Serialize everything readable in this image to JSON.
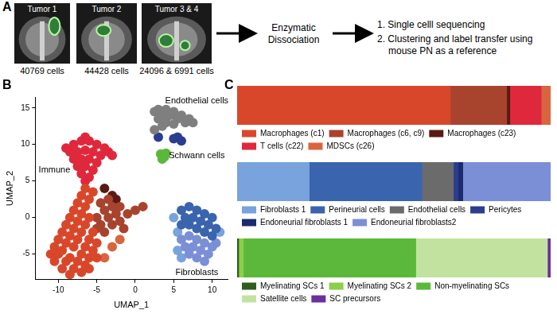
{
  "panel_labels": [
    "A",
    "B",
    "C"
  ],
  "workflow": {
    "samples": [
      {
        "title": "Tumor 1",
        "cells": "40769 cells"
      },
      {
        "title": "Tumor 2",
        "cells": "44428 cells"
      },
      {
        "title": "Tumor 3 & 4",
        "cells": "24096 & 6991 cells"
      }
    ],
    "step": "Enzymatic Dissociation",
    "outputs": [
      "1. Single celll sequencing",
      "2. Clustering and label transfer using mouse PN as a reference"
    ]
  },
  "chart_data": [
    {
      "type": "scatter",
      "x_label": "UMAP_1",
      "y_label": "UMAP_2",
      "xlim": [
        -13,
        12
      ],
      "xticks": [
        -10,
        -5,
        0,
        5,
        10
      ],
      "ylim": [
        -8.5,
        16.5
      ],
      "yticks": [
        -5,
        0,
        5,
        10,
        15
      ],
      "grid": false,
      "series": [
        {
          "color": "#d9472b",
          "points": [
            [
              -10,
              -5
            ],
            [
              -9,
              -6
            ],
            [
              -8,
              -7
            ],
            [
              -7,
              -7.5
            ],
            [
              -10.5,
              -4
            ],
            [
              -9.5,
              -4.5
            ],
            [
              -8.5,
              -5.5
            ],
            [
              -7.5,
              -6
            ],
            [
              -6.5,
              -6.5
            ],
            [
              -10,
              -3
            ],
            [
              -9,
              -3.5
            ],
            [
              -8,
              -4
            ],
            [
              -7,
              -5
            ],
            [
              -6,
              -5.5
            ],
            [
              -9.5,
              -2
            ],
            [
              -8.5,
              -2.5
            ],
            [
              -7.5,
              -3
            ],
            [
              -6.5,
              -4
            ],
            [
              -5.5,
              -4.5
            ],
            [
              -9,
              -1
            ],
            [
              -8,
              -1.5
            ],
            [
              -7,
              -2
            ],
            [
              -6,
              -3
            ],
            [
              -5,
              -3.5
            ],
            [
              -8.5,
              0
            ],
            [
              -7.5,
              -0.5
            ],
            [
              -6.5,
              -1
            ],
            [
              -5.5,
              -2
            ],
            [
              -8,
              1
            ],
            [
              -7,
              0.5
            ],
            [
              -6,
              0
            ],
            [
              -7.5,
              2
            ],
            [
              -6.5,
              1.5
            ],
            [
              -7,
              3
            ],
            [
              -6,
              2.5
            ],
            [
              -6.5,
              4
            ],
            [
              -5.5,
              3.5
            ],
            [
              -11,
              -5
            ],
            [
              -10.5,
              -6
            ],
            [
              -9.5,
              -7
            ],
            [
              -8.5,
              -7.8
            ],
            [
              -6,
              -7
            ],
            [
              -5,
              -5.5
            ]
          ]
        },
        {
          "color": "#a8432e",
          "points": [
            [
              -4.5,
              2
            ],
            [
              -3.5,
              2.5
            ],
            [
              -3,
              1.5
            ],
            [
              -4,
              1
            ],
            [
              -2.5,
              0.5
            ],
            [
              -3.5,
              0
            ],
            [
              -4.5,
              -1
            ],
            [
              -3,
              -1
            ],
            [
              -2,
              -0.5
            ],
            [
              -1,
              0.5
            ],
            [
              0,
              1
            ],
            [
              1,
              1.5
            ],
            [
              -2,
              1.5
            ],
            [
              -4,
              -2
            ],
            [
              -5,
              0
            ],
            [
              -5,
              -1.5
            ],
            [
              -1.5,
              -1.5
            ]
          ]
        },
        {
          "color": "#5a1a14",
          "points": [
            [
              -3,
              3
            ],
            [
              -4,
              4
            ],
            [
              -2.5,
              2.5
            ]
          ]
        },
        {
          "color": "#d9653f",
          "points": [
            [
              -2,
              -3
            ],
            [
              -3,
              -4
            ],
            [
              -4,
              -5.5
            ]
          ]
        },
        {
          "color": "#e0283c",
          "points": [
            [
              -8,
              10
            ],
            [
              -7,
              10.5
            ],
            [
              -6,
              10.5
            ],
            [
              -5,
              10
            ],
            [
              -4,
              9.5
            ],
            [
              -8.5,
              9
            ],
            [
              -7.5,
              9
            ],
            [
              -6.5,
              9.2
            ],
            [
              -5.5,
              9
            ],
            [
              -4.5,
              8.5
            ],
            [
              -8,
              8
            ],
            [
              -7,
              8
            ],
            [
              -6,
              8
            ],
            [
              -5,
              7.5
            ],
            [
              -7.5,
              7
            ],
            [
              -6.5,
              7
            ],
            [
              -5.5,
              6.5
            ],
            [
              -7,
              6
            ],
            [
              -6,
              5.5
            ],
            [
              -6.5,
              5
            ],
            [
              -3.5,
              9
            ],
            [
              -3,
              8.5
            ],
            [
              -9,
              9.5
            ],
            [
              -6.5,
              11
            ]
          ]
        },
        {
          "color": "#7f7f7f",
          "points": [
            [
              2.5,
              14.5
            ],
            [
              3,
              14.8
            ],
            [
              4,
              14.8
            ],
            [
              5,
              14.5
            ],
            [
              6,
              14
            ],
            [
              7,
              13.5
            ],
            [
              3.5,
              14
            ],
            [
              4.5,
              14
            ],
            [
              5.5,
              13.5
            ],
            [
              6.5,
              13
            ],
            [
              3,
              13.5
            ],
            [
              4,
              13
            ],
            [
              5,
              12.8
            ],
            [
              2.5,
              12
            ],
            [
              3.5,
              12.5
            ],
            [
              7.5,
              13
            ]
          ]
        },
        {
          "color": "#2a3d8f",
          "points": [
            [
              5.5,
              11
            ],
            [
              6,
              10.5
            ],
            [
              3,
              11
            ],
            [
              5,
              10.8
            ]
          ]
        },
        {
          "color": "#5cb83a",
          "points": [
            [
              3.3,
              8.7
            ],
            [
              3.8,
              8.3
            ],
            [
              3.5,
              8
            ],
            [
              4,
              8.8
            ]
          ]
        },
        {
          "color": "#3a64ad",
          "points": [
            [
              6,
              1
            ],
            [
              7,
              1.5
            ],
            [
              8,
              1
            ],
            [
              9,
              0.5
            ],
            [
              10,
              0
            ],
            [
              6.5,
              0
            ],
            [
              7.5,
              0
            ],
            [
              8.5,
              -0.5
            ],
            [
              9.5,
              -1
            ],
            [
              10.5,
              -1.5
            ],
            [
              6,
              -1
            ],
            [
              7,
              -1
            ],
            [
              8,
              -1.5
            ],
            [
              9,
              -2
            ],
            [
              10,
              -2.5
            ]
          ]
        },
        {
          "color": "#7a8fd6",
          "points": [
            [
              6,
              -3
            ],
            [
              7,
              -2.5
            ],
            [
              8,
              -3
            ],
            [
              9,
              -3.5
            ],
            [
              10,
              -4
            ],
            [
              6.5,
              -4
            ],
            [
              7.5,
              -4
            ],
            [
              8.5,
              -4.5
            ],
            [
              9.5,
              -5
            ],
            [
              7,
              -5
            ],
            [
              8,
              -5.5
            ],
            [
              9,
              -6
            ],
            [
              10.5,
              -3.5
            ]
          ]
        },
        {
          "color": "#78a3dc",
          "points": [
            [
              5.5,
              -2
            ],
            [
              5,
              0
            ],
            [
              5.5,
              -4.5
            ],
            [
              6,
              -5.5
            ],
            [
              11,
              -2
            ]
          ]
        }
      ],
      "annotations": [
        {
          "text": "Endothelial cells",
          "x": 8,
          "y": 16
        },
        {
          "text": "Immune",
          "x": -10.5,
          "y": 6.5
        },
        {
          "text": "Schwann cells",
          "x": 8,
          "y": 8.5
        },
        {
          "text": "Fibroblasts",
          "x": 8,
          "y": -7.5
        }
      ]
    },
    {
      "type": "bar",
      "orientation": "horizontal",
      "stacked": true,
      "tick_labels": false,
      "legend": "bottom",
      "categories": [
        null
      ],
      "xlim": [
        0,
        100
      ],
      "series": [
        {
          "name": "Macrophages (c1)",
          "color": "#d9472b",
          "values": [
            68
          ]
        },
        {
          "name": "Macrophages (c6, c9)",
          "color": "#a8432e",
          "values": [
            18
          ]
        },
        {
          "name": "Macrophages (c23)",
          "color": "#5a1a14",
          "values": [
            1
          ]
        },
        {
          "name": "T cells (c22)",
          "color": "#e0283c",
          "values": [
            10
          ]
        },
        {
          "name": "MDSCs (c26)",
          "color": "#d9653f",
          "values": [
            3
          ]
        }
      ]
    },
    {
      "type": "bar",
      "orientation": "horizontal",
      "stacked": true,
      "tick_labels": false,
      "legend": "bottom",
      "categories": [
        null
      ],
      "xlim": [
        0,
        100
      ],
      "series": [
        {
          "name": "Fibroblasts 1",
          "color": "#78a3dc",
          "values": [
            23
          ]
        },
        {
          "name": "Perineurial cells",
          "color": "#3a64ad",
          "values": [
            36
          ]
        },
        {
          "name": "Endothelial cells",
          "color": "#6b6b6b",
          "values": [
            10
          ]
        },
        {
          "name": "Pericytes",
          "color": "#2a3d8f",
          "values": [
            1.5
          ]
        },
        {
          "name": "Endoneurial fibroblasts 1",
          "color": "#1c2a6e",
          "values": [
            1.5
          ]
        },
        {
          "name": "Endoneurial fibroblasts2",
          "color": "#7a8fd6",
          "values": [
            28
          ]
        }
      ]
    },
    {
      "type": "bar",
      "orientation": "horizontal",
      "stacked": true,
      "tick_labels": false,
      "legend": "bottom",
      "categories": [
        null
      ],
      "xlim": [
        0,
        100
      ],
      "series": [
        {
          "name": "Myelinating SCs 1",
          "color": "#2e5e1f",
          "values": [
            0.5
          ]
        },
        {
          "name": "Myelinating SCs 2",
          "color": "#8ccf4a",
          "values": [
            1.5
          ]
        },
        {
          "name": "Non-myelinating SCs",
          "color": "#5cb83a",
          "values": [
            55
          ]
        },
        {
          "name": "Satellite cells",
          "color": "#c2e3a0",
          "values": [
            42
          ]
        },
        {
          "name": "SC precursors",
          "color": "#6b2fa0",
          "values": [
            1
          ]
        }
      ]
    }
  ]
}
